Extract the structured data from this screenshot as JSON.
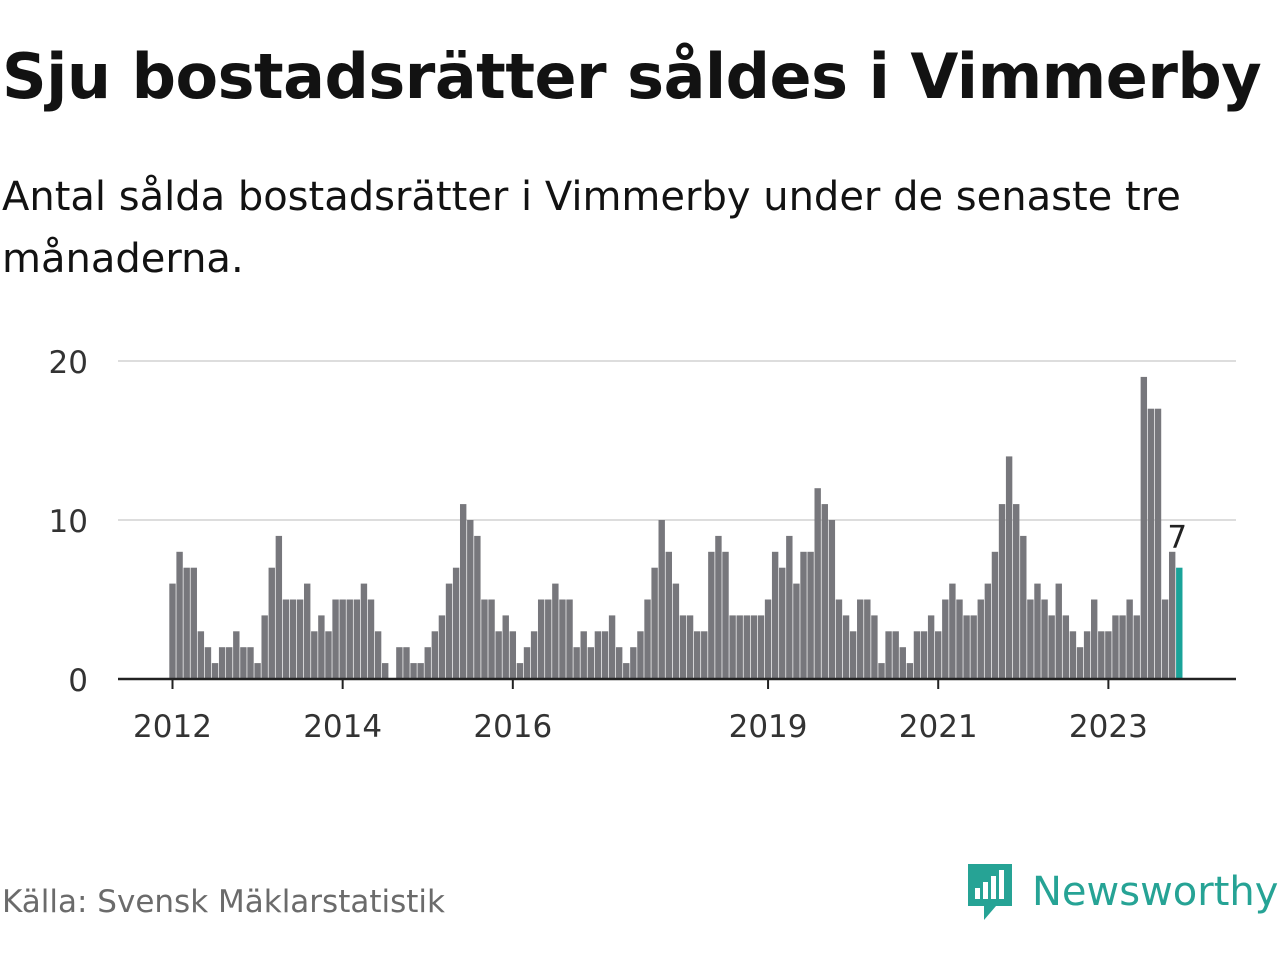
{
  "title": "Sju bostadsrätter såldes i Vimmerby",
  "subtitle": "Antal sålda bostadsrätter i Vimmerby under de senaste tre månaderna.",
  "source": "Källa: Svensk Mäklarstatistik",
  "brand": "Newsworthy",
  "colors": {
    "bar": "#77777c",
    "highlight": "#1aa399",
    "grid": "#dddddd",
    "axis": "#222222"
  },
  "chart_data": {
    "type": "bar",
    "title": "Sju bostadsrätter såldes i Vimmerby",
    "xlabel": "",
    "ylabel": "",
    "ylim": [
      0,
      20
    ],
    "yticks": [
      0,
      10,
      20
    ],
    "x_start": "2012-01",
    "x_end": "2023-12",
    "x_tick_labels": [
      {
        "label": "2012",
        "month_index": 0
      },
      {
        "label": "2014",
        "month_index": 24
      },
      {
        "label": "2016",
        "month_index": 48
      },
      {
        "label": "2019",
        "month_index": 84
      },
      {
        "label": "2021",
        "month_index": 108
      },
      {
        "label": "2023",
        "month_index": 132
      }
    ],
    "values": [
      6,
      8,
      7,
      7,
      3,
      2,
      1,
      2,
      2,
      3,
      2,
      2,
      1,
      4,
      7,
      9,
      5,
      5,
      5,
      6,
      3,
      4,
      3,
      5,
      5,
      5,
      5,
      6,
      5,
      3,
      1,
      0,
      2,
      2,
      1,
      1,
      2,
      3,
      4,
      6,
      7,
      11,
      10,
      9,
      5,
      5,
      3,
      4,
      3,
      1,
      2,
      3,
      5,
      5,
      6,
      5,
      5,
      2,
      3,
      2,
      3,
      3,
      4,
      2,
      1,
      2,
      3,
      5,
      7,
      10,
      8,
      6,
      4,
      4,
      3,
      3,
      8,
      9,
      8,
      4,
      4,
      4,
      4,
      4,
      5,
      8,
      7,
      9,
      6,
      8,
      8,
      12,
      11,
      10,
      5,
      4,
      3,
      5,
      5,
      4,
      1,
      3,
      3,
      2,
      1,
      3,
      3,
      4,
      3,
      5,
      6,
      5,
      4,
      4,
      5,
      6,
      8,
      11,
      14,
      11,
      9,
      5,
      6,
      5,
      4,
      6,
      4,
      3,
      2,
      3,
      5,
      3,
      3,
      4,
      4,
      5,
      4,
      19,
      17,
      17,
      5,
      8,
      7
    ],
    "highlight_label": "7"
  }
}
